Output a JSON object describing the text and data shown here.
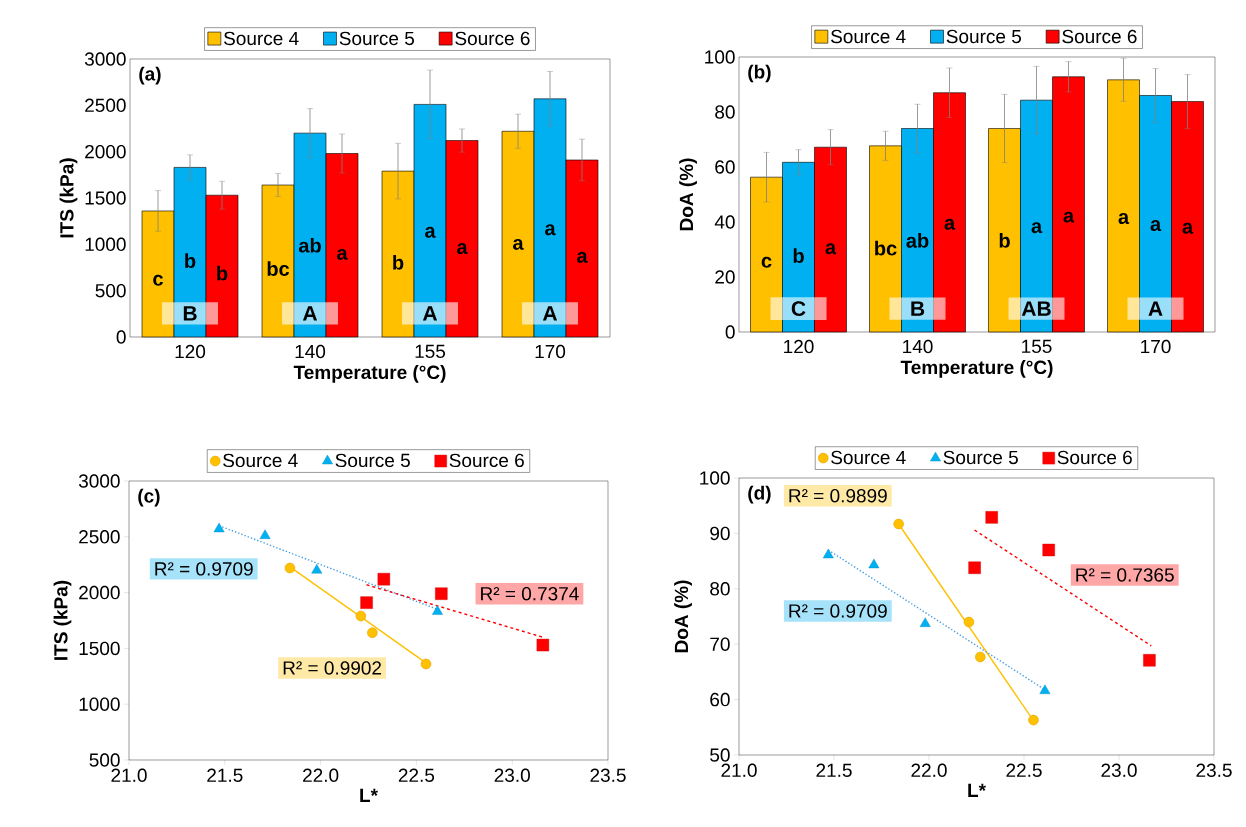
{
  "chart_data": [
    {
      "type": "bar",
      "title": "(a)",
      "xlabel": "Temperature (°C)",
      "ylabel": "ITS (kPa)",
      "categories": [
        "120",
        "140",
        "155",
        "170"
      ],
      "ylim": [
        0,
        3000
      ],
      "yticks": [
        0,
        500,
        1000,
        1500,
        2000,
        2500,
        3000
      ],
      "legend": "top",
      "series": [
        {
          "name": "Source 4",
          "color": "#ffc000",
          "values": [
            1360,
            1640,
            1790,
            2220
          ],
          "errors": [
            220,
            125,
            300,
            185
          ],
          "value_labels": [
            "c",
            "bc",
            "b",
            "a"
          ]
        },
        {
          "name": "Source 5",
          "color": "#00b0f0",
          "values": [
            1830,
            2200,
            2510,
            2570
          ],
          "errors": [
            135,
            265,
            370,
            295
          ],
          "value_labels": [
            "b",
            "ab",
            "a",
            "a"
          ]
        },
        {
          "name": "Source 6",
          "color": "#ff0000",
          "values": [
            1530,
            1980,
            2120,
            1910
          ],
          "errors": [
            150,
            210,
            125,
            225
          ],
          "value_labels": [
            "b",
            "a",
            "a",
            "a"
          ]
        }
      ],
      "annotations": [
        "B",
        "A",
        "A",
        "A"
      ]
    },
    {
      "type": "bar",
      "title": "(b)",
      "xlabel": "Temperature (°C)",
      "ylabel": "DoA (%)",
      "categories": [
        "120",
        "140",
        "155",
        "170"
      ],
      "ylim": [
        0,
        100
      ],
      "yticks": [
        0,
        20,
        40,
        60,
        80,
        100
      ],
      "legend": "top",
      "series": [
        {
          "name": "Source 4",
          "color": "#ffc000",
          "values": [
            56.3,
            67.7,
            74.0,
            91.7
          ],
          "errors": [
            9,
            5.3,
            12.4,
            7.8
          ],
          "value_labels": [
            "c",
            "bc",
            "b",
            "a"
          ]
        },
        {
          "name": "Source 5",
          "color": "#00b0f0",
          "values": [
            61.7,
            74.0,
            84.3,
            86.0
          ],
          "errors": [
            4.6,
            8.8,
            12.3,
            9.8
          ],
          "value_labels": [
            "b",
            "ab",
            "a",
            "a"
          ]
        },
        {
          "name": "Source 6",
          "color": "#ff0000",
          "values": [
            67.2,
            87.0,
            92.8,
            83.8
          ],
          "errors": [
            6.4,
            9,
            5.5,
            9.8
          ],
          "value_labels": [
            "a",
            "a",
            "a",
            "a"
          ]
        }
      ],
      "annotations": [
        "C",
        "B",
        "AB",
        "A"
      ]
    },
    {
      "type": "scatter",
      "title": "(c)",
      "xlabel": "L*",
      "ylabel": "ITS (kPa)",
      "xlim": [
        21,
        23.5
      ],
      "xticks": [
        {
          "value": 21,
          "label": "21.0"
        },
        {
          "value": 21.5,
          "label": "21.5"
        },
        {
          "value": 22,
          "label": "22.0"
        },
        {
          "value": 22.5,
          "label": "22.5"
        },
        {
          "value": 23,
          "label": "23.0"
        },
        {
          "value": 23.5,
          "label": "23.5"
        }
      ],
      "ylim": [
        500,
        3000
      ],
      "yticks": [
        500,
        1000,
        1500,
        2000,
        2500,
        3000
      ],
      "legend": "top",
      "series": [
        {
          "name": "Source 4",
          "color": "#ffc000",
          "marker": "circle",
          "x": [
            22.55,
            22.27,
            22.21,
            21.84
          ],
          "values": [
            1360,
            1640,
            1790,
            2220
          ]
        },
        {
          "name": "Source 5",
          "color": "#00b0f0",
          "marker": "triangle",
          "x": [
            22.61,
            21.98,
            21.71,
            21.47
          ],
          "values": [
            1830,
            2200,
            2510,
            2570
          ]
        },
        {
          "name": "Source 6",
          "color": "#ff0000",
          "marker": "square",
          "x": [
            23.16,
            22.24,
            22.33,
            22.63
          ],
          "values": [
            1530,
            1910,
            2120,
            1990
          ]
        },
        {
          "type": "line",
          "color": "#ffc000",
          "line_style": "solid",
          "marker": "none",
          "x": [
            21.84,
            22.55
          ],
          "values": [
            2230,
            1370
          ]
        },
        {
          "type": "line",
          "color": "#4a9fe0",
          "line_style": "dotted",
          "marker": "none",
          "x": [
            21.47,
            22.61
          ],
          "values": [
            2600,
            1850
          ]
        },
        {
          "type": "line",
          "color": "#ff0000",
          "line_style": "dashed",
          "marker": "none",
          "x": [
            22.24,
            23.16
          ],
          "values": [
            2070,
            1600
          ]
        }
      ],
      "annotations": [
        "R² = 0.9902",
        "R² = 0.9709",
        "R² = 0.7374"
      ]
    },
    {
      "type": "scatter",
      "title": "(d)",
      "xlabel": "L*",
      "ylabel": "DoA (%)",
      "xlim": [
        21,
        23.5
      ],
      "xticks": [
        {
          "value": 21,
          "label": "21.0"
        },
        {
          "value": 21.5,
          "label": "21.5"
        },
        {
          "value": 22,
          "label": "22.0"
        },
        {
          "value": 22.5,
          "label": "22.5"
        },
        {
          "value": 23,
          "label": "23.0"
        },
        {
          "value": 23.5,
          "label": "23.5"
        }
      ],
      "ylim": [
        50,
        100
      ],
      "yticks": [
        50,
        60,
        70,
        80,
        90,
        100
      ],
      "legend": "top",
      "series": [
        {
          "name": "Source 4",
          "color": "#ffc000",
          "marker": "circle",
          "x": [
            22.55,
            22.27,
            22.21,
            21.84
          ],
          "values": [
            56.3,
            67.7,
            74.0,
            91.7
          ]
        },
        {
          "name": "Source 5",
          "color": "#00b0f0",
          "marker": "triangle",
          "x": [
            22.61,
            21.98,
            21.71,
            21.47
          ],
          "values": [
            61.6,
            73.7,
            84.3,
            86.1
          ]
        },
        {
          "name": "Source 6",
          "color": "#ff0000",
          "marker": "square",
          "x": [
            23.16,
            22.24,
            22.33,
            22.63
          ],
          "values": [
            67.1,
            83.8,
            92.9,
            87.0
          ]
        },
        {
          "type": "line",
          "color": "#ffc000",
          "line_style": "solid",
          "marker": "none",
          "x": [
            21.84,
            22.55
          ],
          "values": [
            91.7,
            56.2
          ]
        },
        {
          "type": "line",
          "color": "#4a9fe0",
          "line_style": "dotted",
          "marker": "none",
          "x": [
            21.47,
            22.6
          ],
          "values": [
            87.0,
            62.0
          ]
        },
        {
          "type": "line",
          "color": "#ff0000",
          "line_style": "dashed",
          "marker": "none",
          "x": [
            22.24,
            23.17
          ],
          "values": [
            90.6,
            69.7
          ]
        }
      ],
      "annotations": [
        "R² = 0.9899",
        "R² = 0.9709",
        "R² = 0.7365"
      ]
    }
  ]
}
